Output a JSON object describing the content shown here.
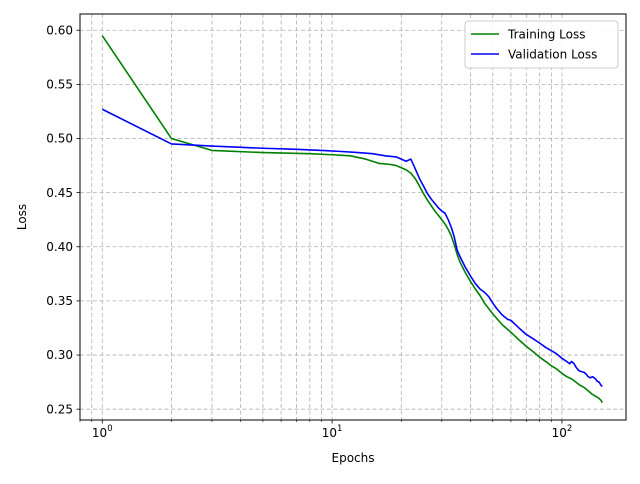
{
  "chart_data": {
    "type": "line",
    "title": "",
    "xlabel": "Epochs",
    "ylabel": "Loss",
    "xscale": "log",
    "xlim": [
      0.8,
      190
    ],
    "ylim": [
      0.24,
      0.615
    ],
    "grid": "on (major and minor, dashed, both axes)",
    "legend_position": "top-right",
    "x_tick_labels": [
      "10^0",
      "10^1",
      "10^2"
    ],
    "x_ticks": [
      1,
      10,
      100
    ],
    "y_ticks": [
      0.25,
      0.3,
      0.35,
      0.4,
      0.45,
      0.5,
      0.55,
      0.6
    ],
    "y_tick_labels": [
      "0.25",
      "0.30",
      "0.35",
      "0.40",
      "0.45",
      "0.50",
      "0.55",
      "0.60"
    ],
    "series": [
      {
        "name": "Training Loss",
        "color": "#008000",
        "points": [
          [
            1,
            0.595
          ],
          [
            2,
            0.5
          ],
          [
            3,
            0.489
          ],
          [
            5,
            0.487
          ],
          [
            8,
            0.486
          ],
          [
            10,
            0.485
          ],
          [
            12,
            0.484
          ],
          [
            14,
            0.481
          ],
          [
            16,
            0.477
          ],
          [
            18,
            0.476
          ],
          [
            19,
            0.475
          ],
          [
            20,
            0.473
          ],
          [
            21,
            0.471
          ],
          [
            22,
            0.468
          ],
          [
            23,
            0.463
          ],
          [
            24,
            0.456
          ],
          [
            25,
            0.449
          ],
          [
            26,
            0.443
          ],
          [
            27,
            0.438
          ],
          [
            28,
            0.433
          ],
          [
            29,
            0.429
          ],
          [
            30,
            0.425
          ],
          [
            31,
            0.421
          ],
          [
            32,
            0.416
          ],
          [
            33,
            0.41
          ],
          [
            34,
            0.402
          ],
          [
            35,
            0.393
          ],
          [
            36,
            0.386
          ],
          [
            38,
            0.376
          ],
          [
            40,
            0.368
          ],
          [
            42,
            0.361
          ],
          [
            44,
            0.355
          ],
          [
            46,
            0.348
          ],
          [
            48,
            0.343
          ],
          [
            50,
            0.338
          ],
          [
            55,
            0.328
          ],
          [
            60,
            0.321
          ],
          [
            65,
            0.314
          ],
          [
            70,
            0.308
          ],
          [
            75,
            0.303
          ],
          [
            80,
            0.298
          ],
          [
            85,
            0.294
          ],
          [
            90,
            0.29
          ],
          [
            95,
            0.287
          ],
          [
            100,
            0.283
          ],
          [
            105,
            0.28
          ],
          [
            110,
            0.278
          ],
          [
            115,
            0.275
          ],
          [
            120,
            0.272
          ],
          [
            125,
            0.27
          ],
          [
            130,
            0.267
          ],
          [
            135,
            0.264
          ],
          [
            140,
            0.262
          ],
          [
            145,
            0.26
          ],
          [
            148,
            0.258
          ],
          [
            150,
            0.256
          ]
        ]
      },
      {
        "name": "Validation Loss",
        "color": "#0000ff",
        "points": [
          [
            1,
            0.527
          ],
          [
            2,
            0.495
          ],
          [
            3,
            0.493
          ],
          [
            5,
            0.491
          ],
          [
            7,
            0.49
          ],
          [
            9,
            0.489
          ],
          [
            11,
            0.488
          ],
          [
            13,
            0.487
          ],
          [
            15,
            0.486
          ],
          [
            17,
            0.484
          ],
          [
            19,
            0.483
          ],
          [
            20,
            0.481
          ],
          [
            21,
            0.479
          ],
          [
            22,
            0.481
          ],
          [
            23,
            0.472
          ],
          [
            24,
            0.463
          ],
          [
            25,
            0.456
          ],
          [
            26,
            0.449
          ],
          [
            27,
            0.444
          ],
          [
            28,
            0.44
          ],
          [
            29,
            0.436
          ],
          [
            30,
            0.433
          ],
          [
            31,
            0.431
          ],
          [
            32,
            0.425
          ],
          [
            33,
            0.418
          ],
          [
            34,
            0.409
          ],
          [
            35,
            0.397
          ],
          [
            36,
            0.391
          ],
          [
            38,
            0.381
          ],
          [
            40,
            0.373
          ],
          [
            42,
            0.366
          ],
          [
            44,
            0.361
          ],
          [
            46,
            0.358
          ],
          [
            48,
            0.354
          ],
          [
            50,
            0.348
          ],
          [
            52,
            0.343
          ],
          [
            55,
            0.337
          ],
          [
            58,
            0.333
          ],
          [
            60,
            0.332
          ],
          [
            65,
            0.325
          ],
          [
            70,
            0.319
          ],
          [
            75,
            0.315
          ],
          [
            80,
            0.311
          ],
          [
            85,
            0.307
          ],
          [
            90,
            0.304
          ],
          [
            95,
            0.301
          ],
          [
            100,
            0.297
          ],
          [
            105,
            0.294
          ],
          [
            108,
            0.292
          ],
          [
            110,
            0.294
          ],
          [
            113,
            0.292
          ],
          [
            115,
            0.289
          ],
          [
            118,
            0.286
          ],
          [
            120,
            0.285
          ],
          [
            125,
            0.284
          ],
          [
            128,
            0.282
          ],
          [
            130,
            0.28
          ],
          [
            133,
            0.279
          ],
          [
            136,
            0.28
          ],
          [
            140,
            0.278
          ],
          [
            142,
            0.276
          ],
          [
            145,
            0.275
          ],
          [
            148,
            0.272
          ],
          [
            150,
            0.271
          ]
        ]
      }
    ]
  }
}
